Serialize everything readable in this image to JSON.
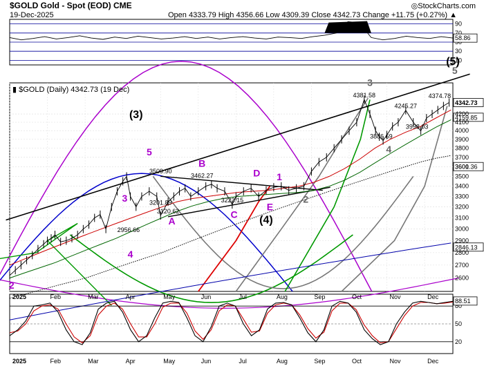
{
  "chart_data": {
    "type": "line",
    "title": "$GOLD Gold - Spot (EOD) CME",
    "date": "19-Dec-2025",
    "ohlc_readout": "Open 4333.79  High 4356.66  Low 4309.39  Close 4342.73  Change +11.75 (+0.27%) ▲",
    "price_label": "▮ $GOLD (Daily) 4342.73 (19 Dec)",
    "price_axis": {
      "ylim": [
        2500,
        4600
      ],
      "ticks": [
        "2600",
        "2700",
        "2800",
        "2900",
        "3000",
        "3100",
        "3200",
        "3300",
        "3400",
        "3500",
        "3600",
        "3700",
        "3800",
        "3900",
        "4000",
        "4100",
        "4200"
      ]
    },
    "x_axis": {
      "months": [
        "2025",
        "Feb",
        "Mar",
        "Apr",
        "May",
        "Jun",
        "Jul",
        "Aug",
        "Sep",
        "Oct",
        "Nov",
        "Dec"
      ],
      "month_index": [
        0,
        1,
        2,
        3,
        4,
        5,
        6,
        7,
        8,
        9,
        10,
        11
      ]
    },
    "price_series": {
      "name": "$GOLD",
      "t": [
        0,
        0.15,
        0.3,
        0.45,
        0.6,
        0.75,
        0.9,
        1.0,
        1.1,
        1.2,
        1.35,
        1.5,
        1.65,
        1.8,
        1.95,
        2.1,
        2.25,
        2.4,
        2.55,
        2.7,
        2.85,
        3.0,
        3.1,
        3.2,
        3.35,
        3.5,
        3.7,
        3.9,
        4.0,
        4.2,
        4.35,
        4.5,
        4.65,
        4.8,
        5.0,
        5.2,
        5.35,
        5.5,
        5.7,
        5.9,
        6.0,
        6.2,
        6.4,
        6.6,
        6.8,
        7.0,
        7.2,
        7.4,
        7.6,
        7.8,
        8.0,
        8.2,
        8.4,
        8.6,
        8.8,
        9.0,
        9.2,
        9.4,
        9.55,
        9.7,
        9.8,
        9.9,
        10.0,
        10.15,
        10.3,
        10.5,
        10.7,
        10.9,
        11.05,
        11.2,
        11.35,
        11.5,
        11.65
      ],
      "values": [
        2620,
        2660,
        2700,
        2740,
        2780,
        2830,
        2870,
        2900,
        2920,
        2950,
        2890,
        2900,
        2920,
        2950,
        3000,
        3040,
        3100,
        3130,
        3000,
        3200,
        3350,
        3450,
        3500,
        3300,
        3201.89,
        3300,
        3350,
        3300,
        3120.62,
        3250,
        3300,
        3350,
        3380,
        3300,
        3350,
        3400,
        3420,
        3380,
        3350,
        3223.15,
        3300,
        3350,
        3380,
        3300,
        3360,
        3390,
        3400,
        3360,
        3380,
        3400,
        3550,
        3650,
        3700,
        3800,
        3900,
        4000,
        4100,
        4381.58,
        4200,
        4000,
        3930,
        3886.69,
        3950,
        4050,
        4100,
        4245.27,
        4100,
        3998.03,
        4150,
        4200,
        4250,
        4300,
        4342.73
      ]
    },
    "ma_series": [
      {
        "values": [
          2700,
          2750,
          2800,
          2850,
          2900,
          2950,
          3000,
          3050,
          3100,
          3150,
          3200,
          3250,
          3280,
          3300,
          3320,
          3340,
          3350,
          3360,
          3380,
          3400,
          3440,
          3500,
          3580,
          3680,
          3800,
          3900,
          3980,
          4050,
          4150,
          4250
        ]
      },
      {
        "values": [
          2600,
          2640,
          2680,
          2720,
          2770,
          2820,
          2870,
          2920,
          2980,
          3040,
          3100,
          3160,
          3210,
          3250,
          3280,
          3300,
          3310,
          3320,
          3330,
          3340,
          3360,
          3400,
          3460,
          3540,
          3640,
          3740,
          3840,
          3940,
          4040,
          4130
        ]
      },
      {
        "values": [
          2450,
          2480,
          2510,
          2540,
          2570,
          2600,
          2640,
          2680,
          2720,
          2760,
          2800,
          2850,
          2900,
          2950,
          3000,
          3050,
          3100,
          3150,
          3200,
          3250,
          3300,
          3350,
          3400,
          3450,
          3500,
          3550,
          3600,
          3650,
          3690,
          3720
        ]
      },
      {
        "values": [
          2300,
          2320,
          2340,
          2360,
          2380,
          2400,
          2420,
          2440,
          2460,
          2480,
          2500,
          2520,
          2540,
          2560,
          2580,
          2600,
          2620,
          2640,
          2660,
          2680,
          2700,
          2720,
          2740,
          2760,
          2780,
          2800,
          2820,
          2840,
          2860,
          2880
        ]
      }
    ],
    "price_annotations": [
      {
        "t": 4.0,
        "v": 3509.9,
        "label": "3509.90"
      },
      {
        "t": 4.0,
        "v": 3201.89,
        "label": "3201.89"
      },
      {
        "t": 4.2,
        "v": 3120.62,
        "label": "3120.62"
      },
      {
        "t": 5.1,
        "v": 3462.27,
        "label": "3462.27"
      },
      {
        "t": 5.9,
        "v": 3223.15,
        "label": "3223.15"
      },
      {
        "t": 3.15,
        "v": 2956.66,
        "label": "2956.66"
      },
      {
        "t": 9.4,
        "v": 4381.58,
        "label": "4381.58"
      },
      {
        "t": 9.85,
        "v": 3886.69,
        "label": "3886.69"
      },
      {
        "t": 10.5,
        "v": 4245.27,
        "label": "4245.27"
      },
      {
        "t": 10.8,
        "v": 3998.03,
        "label": "3998.03"
      },
      {
        "t": 11.4,
        "v": 4374.78,
        "label": "4374.78"
      }
    ],
    "axis_value_boxes": [
      {
        "v": 4342.73,
        "label": "4342.73",
        "style": "dark"
      },
      {
        "v": 4159.85,
        "label": "4159.85",
        "style": "light"
      },
      {
        "v": 3601.36,
        "label": "3601.36",
        "style": "light"
      },
      {
        "v": 2846.13,
        "label": "2846.13",
        "style": "light"
      }
    ],
    "wave_labels": [
      {
        "text": "(3)",
        "t": 3.35,
        "v": 4150,
        "color": "#000000",
        "size": "lg"
      },
      {
        "text": "5",
        "t": 3.7,
        "v": 3720,
        "color": "#aa00cc"
      },
      {
        "text": "3",
        "t": 3.05,
        "v": 3250,
        "color": "#aa00cc"
      },
      {
        "text": "4",
        "t": 3.2,
        "v": 2760,
        "color": "#aa00cc"
      },
      {
        "text": "2",
        "t": 0.05,
        "v": 2520,
        "color": "#aa00cc"
      },
      {
        "text": "B",
        "t": 5.1,
        "v": 3600,
        "color": "#aa00cc"
      },
      {
        "text": "A",
        "t": 4.3,
        "v": 3040,
        "color": "#aa00cc"
      },
      {
        "text": "C",
        "t": 5.95,
        "v": 3100,
        "color": "#aa00cc"
      },
      {
        "text": "D",
        "t": 6.55,
        "v": 3500,
        "color": "#aa00cc"
      },
      {
        "text": "E",
        "t": 6.9,
        "v": 3170,
        "color": "#aa00cc"
      },
      {
        "text": "1",
        "t": 7.15,
        "v": 3460,
        "color": "#aa00cc"
      },
      {
        "text": "(4)",
        "t": 6.8,
        "v": 3050,
        "color": "#000000",
        "size": "lg"
      },
      {
        "text": "2",
        "t": 7.85,
        "v": 3240,
        "color": "#666666"
      },
      {
        "text": "3",
        "t": 9.55,
        "v": 4560,
        "color": "#666666"
      },
      {
        "text": "4",
        "t": 10.05,
        "v": 3750,
        "color": "#666666"
      },
      {
        "text": "(5)",
        "t": 11.75,
        "v": 4850,
        "color": "#000000",
        "size": "lg"
      },
      {
        "text": "5",
        "t": 11.8,
        "v": 4720,
        "color": "#666666"
      }
    ],
    "rsi": {
      "levels": [
        {
          "v": 90,
          "label": "90"
        },
        {
          "v": 70,
          "label": "70"
        },
        {
          "v": 50,
          "label": "50"
        },
        {
          "v": 10,
          "label": "10"
        },
        {
          "v": 30,
          "label": "30"
        }
      ],
      "current": "58.86",
      "values": [
        60,
        55,
        58,
        62,
        57,
        60,
        64,
        59,
        56,
        61,
        58,
        63,
        60,
        57,
        59,
        62,
        58,
        61,
        57,
        60,
        62,
        59,
        57,
        61,
        60,
        58,
        62,
        65,
        70,
        95,
        92,
        60,
        55,
        58,
        63,
        60,
        58,
        62,
        59
      ]
    },
    "stochastic": {
      "levels": [
        {
          "v": 80,
          "label": "80"
        },
        {
          "v": 50,
          "label": "50"
        },
        {
          "v": 20,
          "label": "20"
        }
      ],
      "current": "88.51",
      "k": [
        30,
        40,
        55,
        80,
        82,
        85,
        70,
        40,
        20,
        15,
        35,
        75,
        85,
        88,
        70,
        40,
        20,
        30,
        60,
        85,
        88,
        86,
        60,
        30,
        20,
        45,
        80,
        85,
        80,
        50,
        30,
        40,
        75,
        85,
        86,
        82,
        60,
        35,
        20,
        40,
        80,
        88,
        85,
        70,
        40,
        25,
        15,
        20,
        50,
        70,
        85,
        88,
        86,
        84,
        86,
        88
      ],
      "d": [
        35,
        38,
        50,
        72,
        80,
        82,
        75,
        50,
        28,
        18,
        30,
        65,
        80,
        85,
        75,
        50,
        28,
        28,
        50,
        78,
        85,
        85,
        68,
        38,
        24,
        40,
        72,
        82,
        80,
        58,
        36,
        38,
        68,
        82,
        85,
        82,
        65,
        42,
        26,
        36,
        72,
        85,
        85,
        74,
        48,
        30,
        18,
        20,
        42,
        64,
        80,
        86,
        86,
        84,
        85,
        87
      ]
    }
  }
}
